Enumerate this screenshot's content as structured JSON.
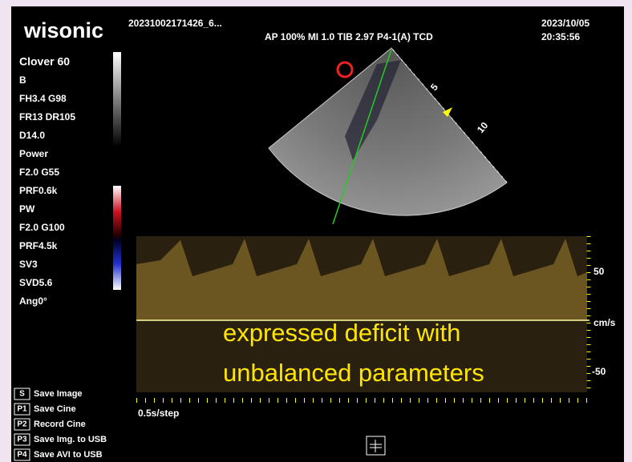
{
  "header": {
    "brand": "wisonic",
    "file": "20231002171426_6...",
    "params": "AP 100%  MI 1.0  TIB 2.97  P4-1(A)  TCD",
    "date": "2023/10/05",
    "time": "20:35:56"
  },
  "left_panel": {
    "probe": "Clover 60",
    "items": [
      {
        "text": "B",
        "highlight": true
      },
      {
        "text": "FH3.4  G98",
        "highlight": false
      },
      {
        "text": "FR13  DR105",
        "highlight": false
      },
      {
        "text": "D14.0",
        "highlight": false
      },
      {
        "text": "Power",
        "highlight": true
      },
      {
        "text": "F2.0   G55",
        "highlight": false
      },
      {
        "text": "PRF0.6k",
        "highlight": false
      },
      {
        "text": "PW",
        "highlight": true
      },
      {
        "text": "F2.0   G100",
        "highlight": false
      },
      {
        "text": "PRF4.5k",
        "highlight": false
      },
      {
        "text": "SV3",
        "highlight": false
      },
      {
        "text": "SVD5.6",
        "highlight": false
      },
      {
        "text": "Ang0°",
        "highlight": false
      }
    ]
  },
  "softkeys": [
    {
      "key": "S",
      "label": "Save Image"
    },
    {
      "key": "P1",
      "label": "Save Cine"
    },
    {
      "key": "P2",
      "label": "Record Cine"
    },
    {
      "key": "P3",
      "label": "Save Img. to USB"
    },
    {
      "key": "P4",
      "label": "Save AVI to USB"
    }
  ],
  "image": {
    "depth_labels": [
      "5",
      "10"
    ],
    "velocity_labels": [
      "50",
      "cm/s",
      "-50"
    ],
    "sweep": "0.5s/step"
  },
  "caption": [
    "expressed deficit with",
    "unbalanced parameters"
  ]
}
